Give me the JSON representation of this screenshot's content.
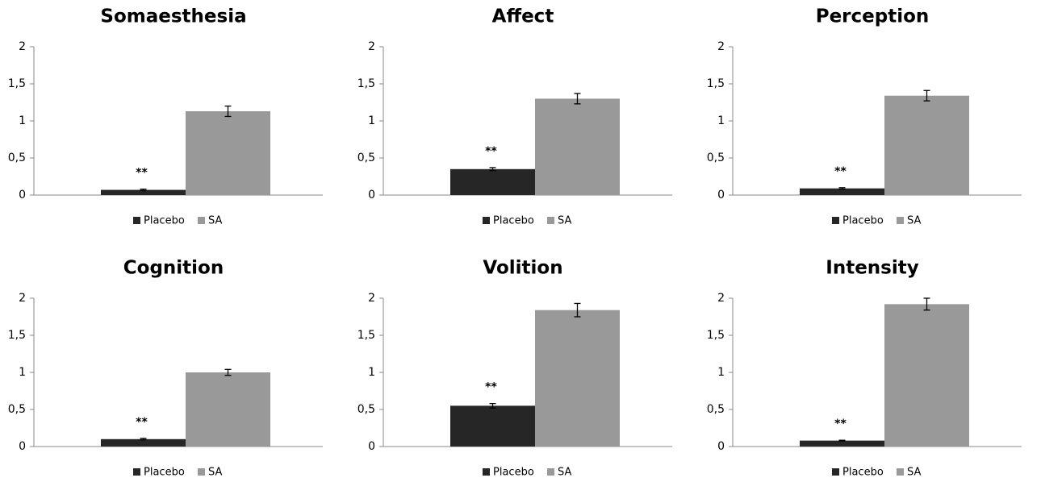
{
  "chart_data": [
    {
      "type": "bar",
      "title": "Somaesthesia",
      "categories": [
        null
      ],
      "annotation": "**",
      "series": [
        {
          "name": "Placebo",
          "color": "#262626",
          "values": [
            0.07
          ],
          "errors": [
            0.01
          ]
        },
        {
          "name": "SA",
          "color": "#999999",
          "values": [
            1.13
          ],
          "errors": [
            0.07
          ]
        }
      ],
      "ylim": [
        0,
        2
      ],
      "yticks": [
        0,
        {
          "value": 0.5,
          "label": "0,5"
        },
        1,
        {
          "value": 1.5,
          "label": "1,5"
        },
        2
      ]
    },
    {
      "type": "bar",
      "title": "Affect",
      "categories": [
        null
      ],
      "annotation": "**",
      "series": [
        {
          "name": "Placebo",
          "color": "#262626",
          "values": [
            0.35
          ],
          "errors": [
            0.02
          ]
        },
        {
          "name": "SA",
          "color": "#999999",
          "values": [
            1.3
          ],
          "errors": [
            0.07
          ]
        }
      ],
      "ylim": [
        0,
        2
      ],
      "yticks": [
        0,
        {
          "value": 0.5,
          "label": "0,5"
        },
        1,
        {
          "value": 1.5,
          "label": "1,5"
        },
        2
      ]
    },
    {
      "type": "bar",
      "title": "Perception",
      "categories": [
        null
      ],
      "annotation": "**",
      "series": [
        {
          "name": "Placebo",
          "color": "#262626",
          "values": [
            0.09
          ],
          "errors": [
            0.01
          ]
        },
        {
          "name": "SA",
          "color": "#999999",
          "values": [
            1.34
          ],
          "errors": [
            0.07
          ]
        }
      ],
      "ylim": [
        0,
        2
      ],
      "yticks": [
        0,
        {
          "value": 0.5,
          "label": "0,5"
        },
        1,
        {
          "value": 1.5,
          "label": "1,5"
        },
        2
      ]
    },
    {
      "type": "bar",
      "title": "Cognition",
      "categories": [
        null
      ],
      "annotation": "**",
      "series": [
        {
          "name": "Placebo",
          "color": "#262626",
          "values": [
            0.1
          ],
          "errors": [
            0.01
          ]
        },
        {
          "name": "SA",
          "color": "#999999",
          "values": [
            1.0
          ],
          "errors": [
            0.04
          ]
        }
      ],
      "ylim": [
        0,
        2
      ],
      "yticks": [
        0,
        {
          "value": 0.5,
          "label": "0,5"
        },
        1,
        {
          "value": 1.5,
          "label": "1,5"
        },
        2
      ]
    },
    {
      "type": "bar",
      "title": "Volition",
      "categories": [
        null
      ],
      "annotation": "**",
      "series": [
        {
          "name": "Placebo",
          "color": "#262626",
          "values": [
            0.55
          ],
          "errors": [
            0.03
          ]
        },
        {
          "name": "SA",
          "color": "#999999",
          "values": [
            1.84
          ],
          "errors": [
            0.09
          ]
        }
      ],
      "ylim": [
        0,
        2
      ],
      "yticks": [
        0,
        {
          "value": 0.5,
          "label": "0,5"
        },
        1,
        {
          "value": 1.5,
          "label": "1,5"
        },
        2
      ]
    },
    {
      "type": "bar",
      "title": "Intensity",
      "categories": [
        null
      ],
      "annotation": "**",
      "series": [
        {
          "name": "Placebo",
          "color": "#262626",
          "values": [
            0.08
          ],
          "errors": [
            0.005
          ]
        },
        {
          "name": "SA",
          "color": "#999999",
          "values": [
            1.92
          ],
          "errors": [
            0.08
          ]
        }
      ],
      "ylim": [
        0,
        2
      ],
      "yticks": [
        0,
        {
          "value": 0.5,
          "label": "0,5"
        },
        1,
        {
          "value": 1.5,
          "label": "1,5"
        },
        2
      ]
    }
  ]
}
